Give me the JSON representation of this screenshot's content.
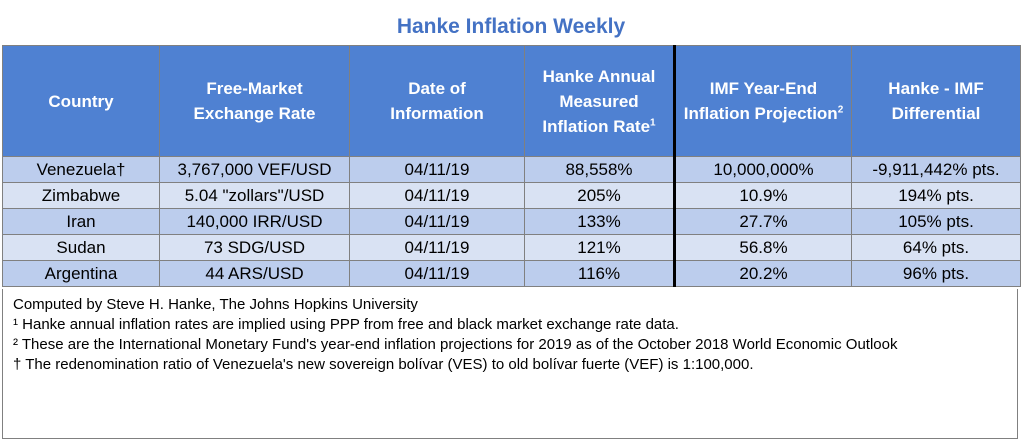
{
  "title": "Hanke Inflation Weekly",
  "headers": {
    "country": "Country",
    "rate_l1": "Free-Market",
    "rate_l2": "Exchange Rate",
    "date_l1": "Date of",
    "date_l2": "Information",
    "hanke_l1": "Hanke Annual",
    "hanke_l2": "Measured",
    "hanke_l3": "Inflation Rate",
    "hanke_sup": "1",
    "imf_l1": "IMF Year-End",
    "imf_l2": "Inflation Projection",
    "imf_sup": "2",
    "diff_l1": "Hanke - IMF",
    "diff_l2": "Differential"
  },
  "rows": [
    {
      "country": "Venezuela†",
      "rate": "3,767,000 VEF/USD",
      "date": "04/11/19",
      "hanke": "88,558%",
      "imf": "10,000,000%",
      "diff": "-9,911,442% pts."
    },
    {
      "country": "Zimbabwe",
      "rate": "5.04 \"zollars\"/USD",
      "date": "04/11/19",
      "hanke": "205%",
      "imf": "10.9%",
      "diff": "194% pts."
    },
    {
      "country": "Iran",
      "rate": "140,000 IRR/USD",
      "date": "04/11/19",
      "hanke": "133%",
      "imf": "27.7%",
      "diff": "105% pts."
    },
    {
      "country": "Sudan",
      "rate": "73 SDG/USD",
      "date": "04/11/19",
      "hanke": "121%",
      "imf": "56.8%",
      "diff": "64% pts."
    },
    {
      "country": "Argentina",
      "rate": "44 ARS/USD",
      "date": "04/11/19",
      "hanke": "116%",
      "imf": "20.2%",
      "diff": "96% pts."
    }
  ],
  "notes": [
    "Computed by Steve H. Hanke, The Johns Hopkins University",
    "¹ Hanke annual inflation rates are implied using PPP from free and black market exchange rate data.",
    "² These are the International Monetary Fund's year-end inflation projections for 2019 as of the October 2018 World Economic Outlook",
    "† The redenomination ratio of Venezuela's new sovereign bolívar (VES) to old bolívar fuerte (VEF) is 1:100,000."
  ],
  "colors": {
    "title": "#4472C4",
    "header_bg": "#4F81D2",
    "row_dark": "#BCCDED",
    "row_light": "#D9E2F3"
  }
}
